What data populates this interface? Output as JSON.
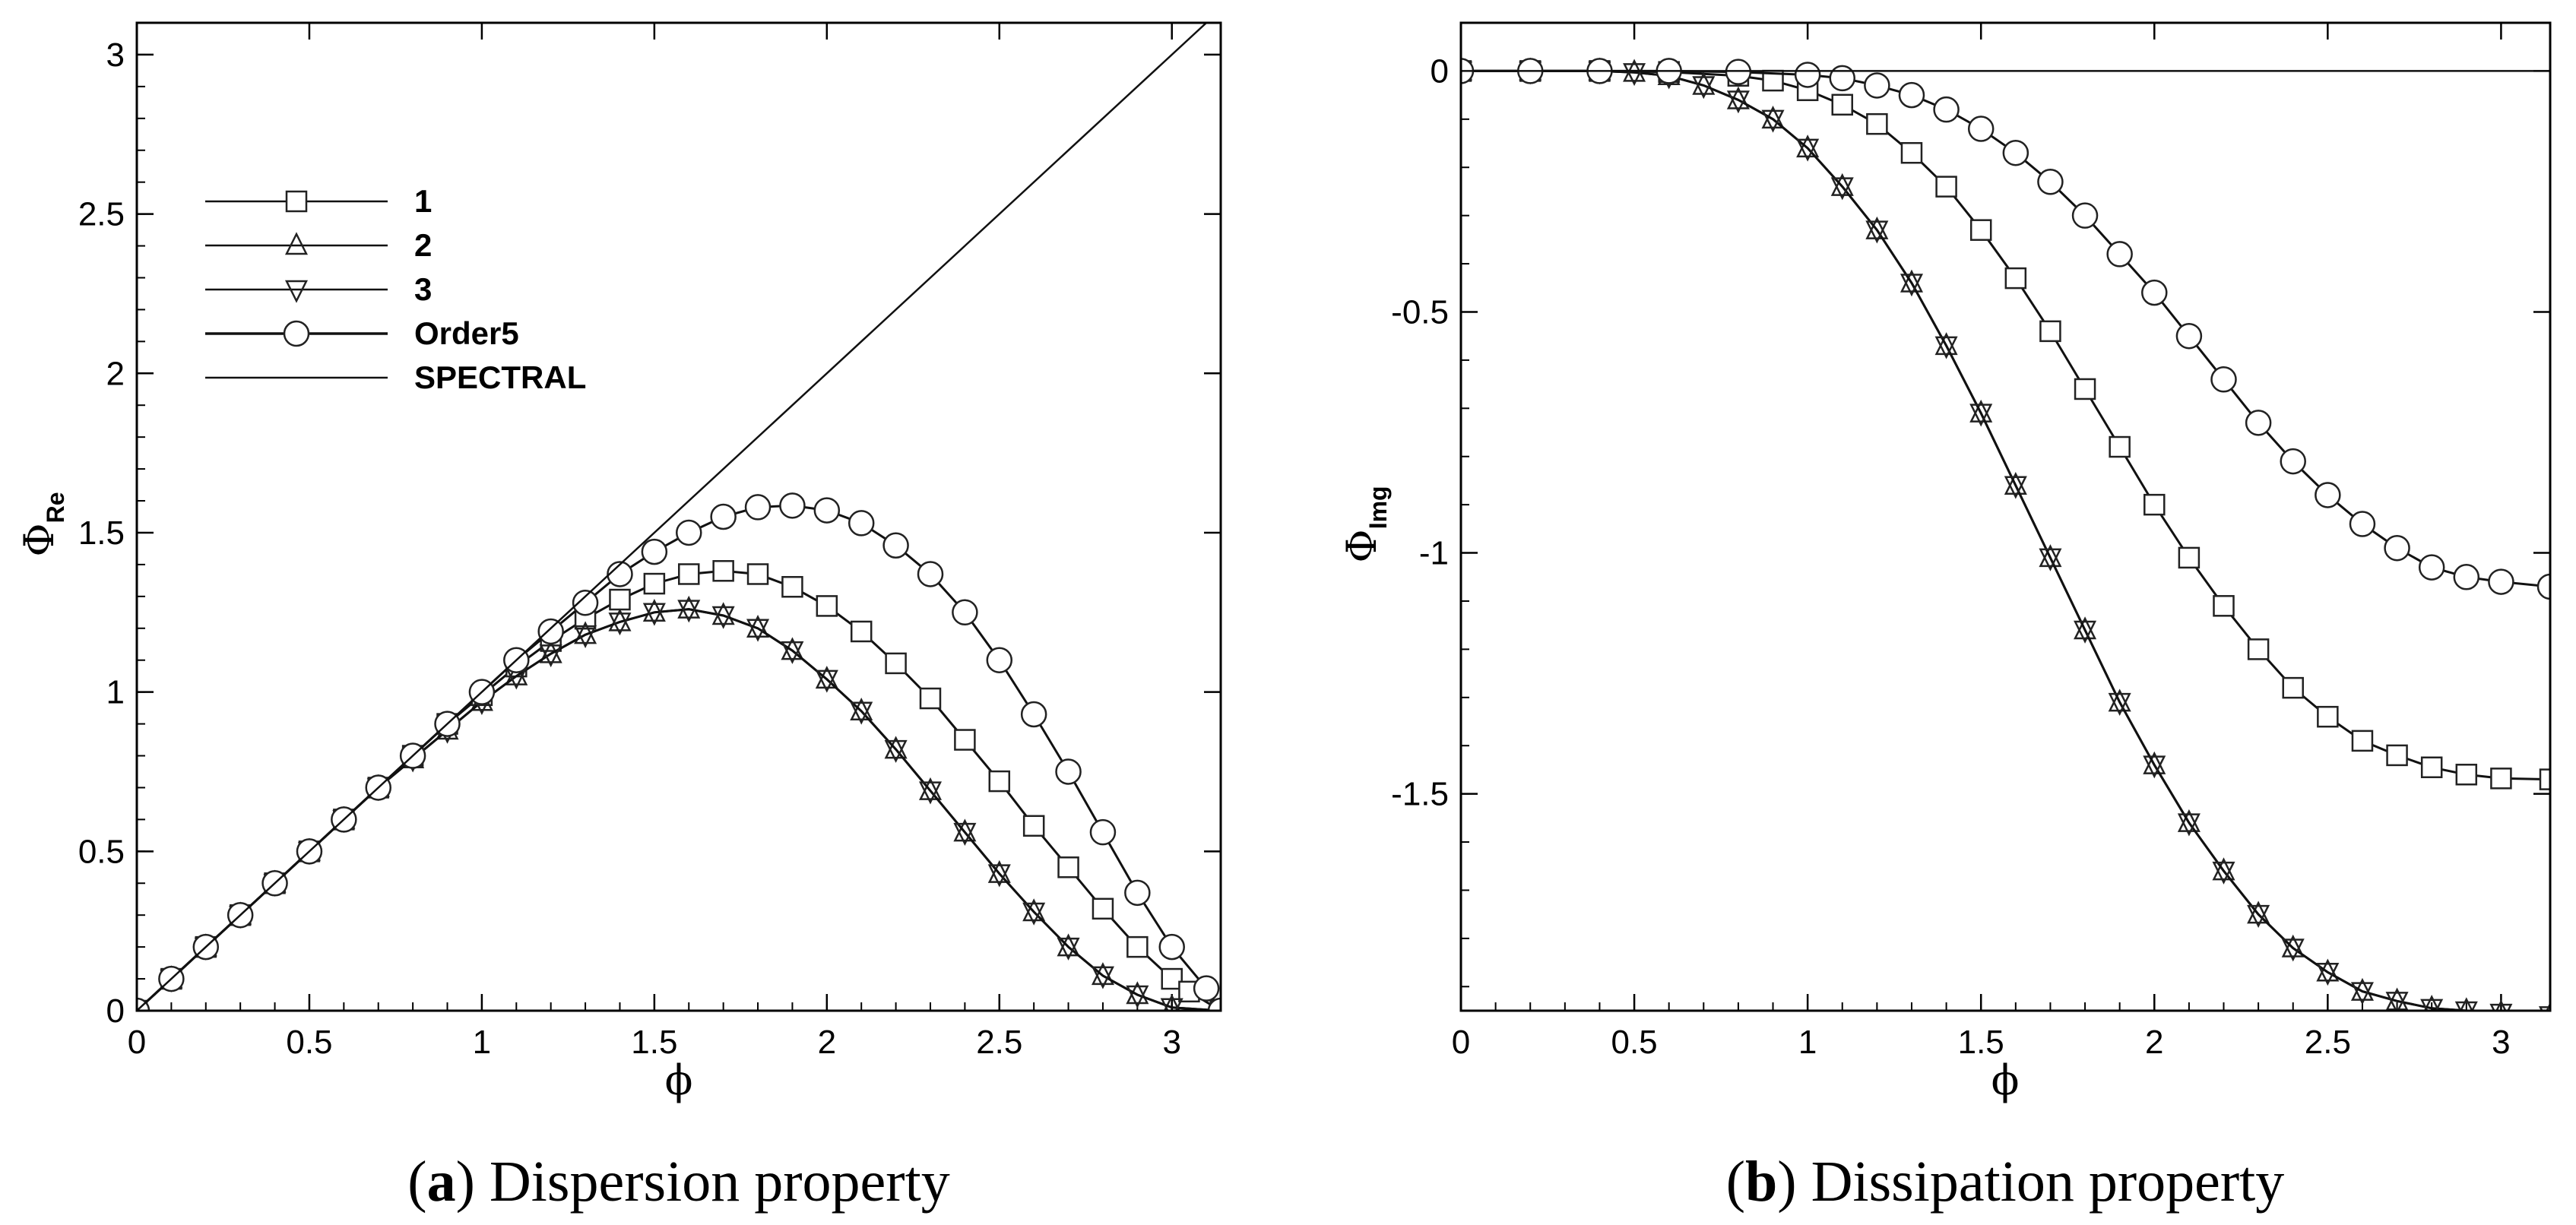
{
  "chart_data": [
    {
      "type": "line",
      "caption_label": "a",
      "caption_title": " Dispersion property",
      "xlabel": "ϕ",
      "ylabel_symbol": "Φ",
      "ylabel_subscript": "Re",
      "xlim": [
        0,
        3.14159
      ],
      "ylim": [
        0,
        3.1
      ],
      "xticks": [
        "0",
        "0.5",
        "1",
        "1.5",
        "2",
        "2.5",
        "3"
      ],
      "yticks": [
        "0",
        "0.5",
        "1",
        "1.5",
        "2",
        "2.5",
        "3"
      ],
      "legend_position": "upper-left",
      "series": [
        {
          "name": "1",
          "marker": "square",
          "points": [
            [
              0,
              0
            ],
            [
              0.1,
              0.1
            ],
            [
              0.2,
              0.2
            ],
            [
              0.3,
              0.3
            ],
            [
              0.4,
              0.4
            ],
            [
              0.5,
              0.5
            ],
            [
              0.6,
              0.6
            ],
            [
              0.7,
              0.7
            ],
            [
              0.8,
              0.8
            ],
            [
              0.9,
              0.9
            ],
            [
              1.0,
              0.99
            ],
            [
              1.1,
              1.08
            ],
            [
              1.2,
              1.16
            ],
            [
              1.3,
              1.23
            ],
            [
              1.4,
              1.29
            ],
            [
              1.5,
              1.34
            ],
            [
              1.6,
              1.37
            ],
            [
              1.7,
              1.38
            ],
            [
              1.8,
              1.37
            ],
            [
              1.9,
              1.33
            ],
            [
              2.0,
              1.27
            ],
            [
              2.1,
              1.19
            ],
            [
              2.2,
              1.09
            ],
            [
              2.3,
              0.98
            ],
            [
              2.4,
              0.85
            ],
            [
              2.5,
              0.72
            ],
            [
              2.6,
              0.58
            ],
            [
              2.7,
              0.45
            ],
            [
              2.8,
              0.32
            ],
            [
              2.9,
              0.2
            ],
            [
              3.0,
              0.1
            ],
            [
              3.05,
              0.06
            ],
            [
              3.14159,
              0
            ]
          ]
        },
        {
          "name": "2",
          "marker": "triangle-up",
          "points": [
            [
              0,
              0
            ],
            [
              0.1,
              0.1
            ],
            [
              0.2,
              0.2
            ],
            [
              0.3,
              0.3
            ],
            [
              0.4,
              0.4
            ],
            [
              0.5,
              0.5
            ],
            [
              0.6,
              0.6
            ],
            [
              0.7,
              0.7
            ],
            [
              0.8,
              0.79
            ],
            [
              0.9,
              0.88
            ],
            [
              1.0,
              0.97
            ],
            [
              1.1,
              1.05
            ],
            [
              1.2,
              1.12
            ],
            [
              1.3,
              1.18
            ],
            [
              1.4,
              1.22
            ],
            [
              1.5,
              1.25
            ],
            [
              1.6,
              1.26
            ],
            [
              1.7,
              1.24
            ],
            [
              1.8,
              1.2
            ],
            [
              1.9,
              1.13
            ],
            [
              2.0,
              1.04
            ],
            [
              2.1,
              0.94
            ],
            [
              2.2,
              0.82
            ],
            [
              2.3,
              0.69
            ],
            [
              2.4,
              0.56
            ],
            [
              2.5,
              0.43
            ],
            [
              2.6,
              0.31
            ],
            [
              2.7,
              0.2
            ],
            [
              2.8,
              0.11
            ],
            [
              2.9,
              0.05
            ],
            [
              3.0,
              0.01
            ],
            [
              3.14159,
              0
            ]
          ]
        },
        {
          "name": "3",
          "marker": "triangle-down",
          "points": [
            [
              0,
              0
            ],
            [
              0.1,
              0.1
            ],
            [
              0.2,
              0.2
            ],
            [
              0.3,
              0.3
            ],
            [
              0.4,
              0.4
            ],
            [
              0.5,
              0.5
            ],
            [
              0.6,
              0.6
            ],
            [
              0.7,
              0.7
            ],
            [
              0.8,
              0.79
            ],
            [
              0.9,
              0.88
            ],
            [
              1.0,
              0.97
            ],
            [
              1.1,
              1.05
            ],
            [
              1.2,
              1.12
            ],
            [
              1.3,
              1.18
            ],
            [
              1.4,
              1.22
            ],
            [
              1.5,
              1.25
            ],
            [
              1.6,
              1.26
            ],
            [
              1.7,
              1.24
            ],
            [
              1.8,
              1.2
            ],
            [
              1.9,
              1.13
            ],
            [
              2.0,
              1.04
            ],
            [
              2.1,
              0.94
            ],
            [
              2.2,
              0.82
            ],
            [
              2.3,
              0.69
            ],
            [
              2.4,
              0.56
            ],
            [
              2.5,
              0.43
            ],
            [
              2.6,
              0.31
            ],
            [
              2.7,
              0.2
            ],
            [
              2.8,
              0.11
            ],
            [
              2.9,
              0.05
            ],
            [
              3.0,
              0.01
            ],
            [
              3.14159,
              0
            ]
          ]
        },
        {
          "name": "Order5",
          "marker": "circle",
          "points": [
            [
              0,
              0
            ],
            [
              0.1,
              0.1
            ],
            [
              0.2,
              0.2
            ],
            [
              0.3,
              0.3
            ],
            [
              0.4,
              0.4
            ],
            [
              0.5,
              0.5
            ],
            [
              0.6,
              0.6
            ],
            [
              0.7,
              0.7
            ],
            [
              0.8,
              0.8
            ],
            [
              0.9,
              0.9
            ],
            [
              1.0,
              1.0
            ],
            [
              1.1,
              1.1
            ],
            [
              1.2,
              1.19
            ],
            [
              1.3,
              1.28
            ],
            [
              1.4,
              1.37
            ],
            [
              1.5,
              1.44
            ],
            [
              1.6,
              1.5
            ],
            [
              1.7,
              1.55
            ],
            [
              1.8,
              1.58
            ],
            [
              1.9,
              1.585
            ],
            [
              2.0,
              1.57
            ],
            [
              2.1,
              1.53
            ],
            [
              2.2,
              1.46
            ],
            [
              2.3,
              1.37
            ],
            [
              2.4,
              1.25
            ],
            [
              2.5,
              1.1
            ],
            [
              2.6,
              0.93
            ],
            [
              2.7,
              0.75
            ],
            [
              2.8,
              0.56
            ],
            [
              2.9,
              0.37
            ],
            [
              3.0,
              0.2
            ],
            [
              3.1,
              0.07
            ],
            [
              3.14159,
              0
            ]
          ]
        },
        {
          "name": "SPECTRAL",
          "marker": "none",
          "points": [
            [
              0,
              0
            ],
            [
              3.1,
              3.1
            ]
          ]
        }
      ]
    },
    {
      "type": "line",
      "caption_label": "b",
      "caption_title": " Dissipation property",
      "xlabel": "ϕ",
      "ylabel_symbol": "Φ",
      "ylabel_subscript": "Img",
      "xlim": [
        0,
        3.14159
      ],
      "ylim": [
        -1.95,
        0.1
      ],
      "xticks": [
        "0",
        "0.5",
        "1",
        "1.5",
        "2",
        "2.5",
        "3"
      ],
      "yticks": [
        "0",
        "-0.5",
        "-1",
        "-1.5"
      ],
      "series": [
        {
          "name": "1",
          "marker": "square",
          "points": [
            [
              0,
              0
            ],
            [
              0.2,
              0
            ],
            [
              0.4,
              0
            ],
            [
              0.6,
              -0.002
            ],
            [
              0.8,
              -0.01
            ],
            [
              0.9,
              -0.02
            ],
            [
              1.0,
              -0.04
            ],
            [
              1.1,
              -0.07
            ],
            [
              1.2,
              -0.11
            ],
            [
              1.3,
              -0.17
            ],
            [
              1.4,
              -0.24
            ],
            [
              1.5,
              -0.33
            ],
            [
              1.6,
              -0.43
            ],
            [
              1.7,
              -0.54
            ],
            [
              1.8,
              -0.66
            ],
            [
              1.9,
              -0.78
            ],
            [
              2.0,
              -0.9
            ],
            [
              2.1,
              -1.01
            ],
            [
              2.2,
              -1.11
            ],
            [
              2.3,
              -1.2
            ],
            [
              2.4,
              -1.28
            ],
            [
              2.5,
              -1.34
            ],
            [
              2.6,
              -1.39
            ],
            [
              2.7,
              -1.42
            ],
            [
              2.8,
              -1.445
            ],
            [
              2.9,
              -1.46
            ],
            [
              3.0,
              -1.468
            ],
            [
              3.14159,
              -1.47
            ]
          ]
        },
        {
          "name": "2",
          "marker": "triangle-up",
          "points": [
            [
              0,
              0
            ],
            [
              0.2,
              0
            ],
            [
              0.4,
              0
            ],
            [
              0.5,
              -0.003
            ],
            [
              0.6,
              -0.01
            ],
            [
              0.7,
              -0.03
            ],
            [
              0.8,
              -0.06
            ],
            [
              0.9,
              -0.1
            ],
            [
              1.0,
              -0.16
            ],
            [
              1.1,
              -0.24
            ],
            [
              1.2,
              -0.33
            ],
            [
              1.3,
              -0.44
            ],
            [
              1.4,
              -0.57
            ],
            [
              1.5,
              -0.71
            ],
            [
              1.6,
              -0.86
            ],
            [
              1.7,
              -1.01
            ],
            [
              1.8,
              -1.16
            ],
            [
              1.9,
              -1.31
            ],
            [
              2.0,
              -1.44
            ],
            [
              2.1,
              -1.56
            ],
            [
              2.2,
              -1.66
            ],
            [
              2.3,
              -1.75
            ],
            [
              2.4,
              -1.82
            ],
            [
              2.5,
              -1.87
            ],
            [
              2.6,
              -1.91
            ],
            [
              2.7,
              -1.93
            ],
            [
              2.8,
              -1.945
            ],
            [
              2.9,
              -1.95
            ],
            [
              3.0,
              -1.955
            ],
            [
              3.14159,
              -1.96
            ]
          ]
        },
        {
          "name": "3",
          "marker": "triangle-down",
          "points": [
            [
              0,
              0
            ],
            [
              0.2,
              0
            ],
            [
              0.4,
              0
            ],
            [
              0.5,
              -0.003
            ],
            [
              0.6,
              -0.01
            ],
            [
              0.7,
              -0.03
            ],
            [
              0.8,
              -0.06
            ],
            [
              0.9,
              -0.1
            ],
            [
              1.0,
              -0.16
            ],
            [
              1.1,
              -0.24
            ],
            [
              1.2,
              -0.33
            ],
            [
              1.3,
              -0.44
            ],
            [
              1.4,
              -0.57
            ],
            [
              1.5,
              -0.71
            ],
            [
              1.6,
              -0.86
            ],
            [
              1.7,
              -1.01
            ],
            [
              1.8,
              -1.16
            ],
            [
              1.9,
              -1.31
            ],
            [
              2.0,
              -1.44
            ],
            [
              2.1,
              -1.56
            ],
            [
              2.2,
              -1.66
            ],
            [
              2.3,
              -1.75
            ],
            [
              2.4,
              -1.82
            ],
            [
              2.5,
              -1.87
            ],
            [
              2.6,
              -1.91
            ],
            [
              2.7,
              -1.93
            ],
            [
              2.8,
              -1.945
            ],
            [
              2.9,
              -1.95
            ],
            [
              3.0,
              -1.955
            ],
            [
              3.14159,
              -1.96
            ]
          ]
        },
        {
          "name": "Order5",
          "marker": "circle",
          "points": [
            [
              0,
              0
            ],
            [
              0.2,
              0
            ],
            [
              0.4,
              0
            ],
            [
              0.6,
              0
            ],
            [
              0.8,
              -0.002
            ],
            [
              1.0,
              -0.008
            ],
            [
              1.1,
              -0.015
            ],
            [
              1.2,
              -0.03
            ],
            [
              1.3,
              -0.05
            ],
            [
              1.4,
              -0.08
            ],
            [
              1.5,
              -0.12
            ],
            [
              1.6,
              -0.17
            ],
            [
              1.7,
              -0.23
            ],
            [
              1.8,
              -0.3
            ],
            [
              1.9,
              -0.38
            ],
            [
              2.0,
              -0.46
            ],
            [
              2.1,
              -0.55
            ],
            [
              2.2,
              -0.64
            ],
            [
              2.3,
              -0.73
            ],
            [
              2.4,
              -0.81
            ],
            [
              2.5,
              -0.88
            ],
            [
              2.6,
              -0.94
            ],
            [
              2.7,
              -0.99
            ],
            [
              2.8,
              -1.03
            ],
            [
              2.9,
              -1.05
            ],
            [
              3.0,
              -1.06
            ],
            [
              3.14159,
              -1.07
            ]
          ]
        },
        {
          "name": "SPECTRAL",
          "marker": "none",
          "points": [
            [
              0,
              0
            ],
            [
              3.14159,
              0
            ]
          ]
        }
      ]
    }
  ]
}
